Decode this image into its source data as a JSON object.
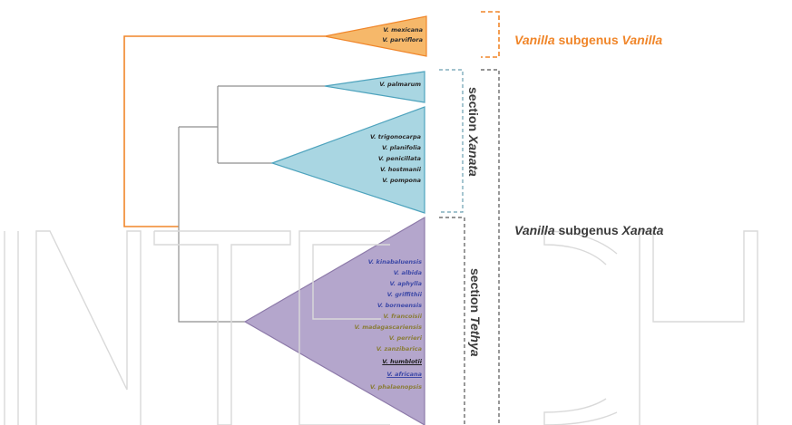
{
  "colors": {
    "orange": "#f0862a",
    "orange_fill": "#f6b86a",
    "blue_fill": "#a9d6e2",
    "blue_stroke": "#4ea3bd",
    "purple_fill": "#b4a6cc",
    "purple_stroke": "#8d7aa9",
    "tree_gray": "#8f8f8f",
    "label_dark": "#3b3b3b",
    "taxon_dark": "#2a2a2a",
    "taxon_blue": "#3f4aa8",
    "taxon_olive": "#8a7d3a",
    "watermark": "#d9d9d9"
  },
  "clades": {
    "subgenus_vanilla": {
      "taxa": [
        "V. mexicana",
        "V. parviflora"
      ]
    },
    "section_xanata_top": {
      "taxa": [
        "V. palmarum"
      ]
    },
    "section_xanata_main": {
      "taxa": [
        "V. trigonocarpa",
        "V. planifolia",
        "V. penicillata",
        "V. hostmanii",
        "V. pompona"
      ]
    },
    "section_tethya": {
      "taxa": [
        "V. kinabaluensis",
        "V. albida",
        "V. aphylla",
        "V. griffithii",
        "V. borneensis",
        "V. francoisii",
        "V. madagascariensis",
        "V. perrieri",
        "V. zanzibarica",
        "V. humblotii",
        "V. africana",
        "V. phalaenopsis"
      ]
    }
  },
  "labels": {
    "section_xanata": {
      "prefix": "section ",
      "name": "Xanata"
    },
    "section_tethya": {
      "prefix": "section ",
      "name": "Tethya"
    },
    "subgenus_vanilla": {
      "genus": "Vanilla",
      "middle": " subgenus ",
      "name": "Vanilla"
    },
    "subgenus_xanata": {
      "genus": "Vanilla",
      "middle": " subgenus ",
      "name": "Xanata"
    }
  },
  "watermark": {
    "text": "INTECH"
  }
}
